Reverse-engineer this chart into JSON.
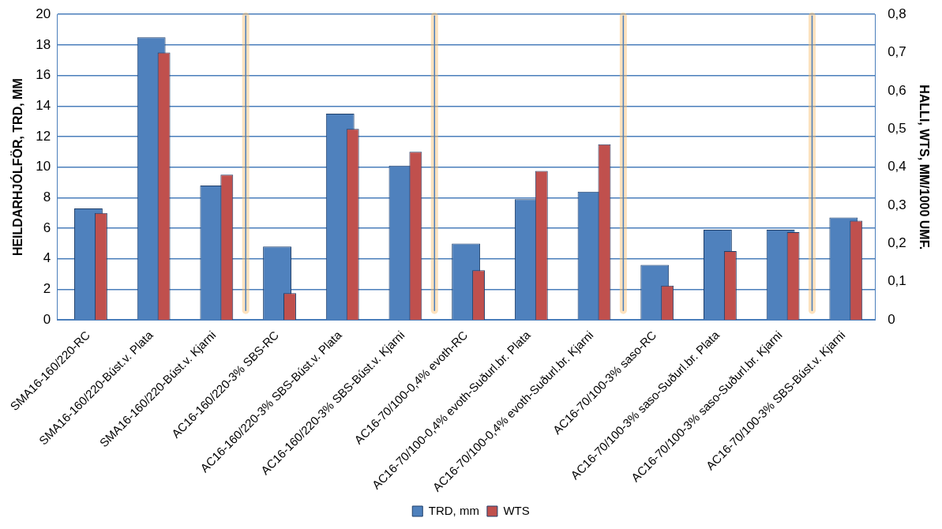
{
  "chart_data": {
    "type": "bar",
    "categories": [
      "SMA16-160/220-RC",
      "SMA16-160/220-Búst.v. Plata",
      "SMA16-160/220-Búst.v. Kjarni",
      "AC16-160/220-3% SBS-RC",
      "AC16-160/220-3% SBS-Búst.v. Plata",
      "AC16-160/220-3% SBS-Búst.v. Kjarni",
      "AC16-70/100-0,4% evoth-RC",
      "AC16-70/100-0,4% evoth-Suðurl.br. Plata",
      "AC16-70/100-0,4% evoth-Suðurl.br. Kjarni",
      "AC16-70/100-3% saso-RC",
      "AC16-70/100-3% saso-Suðurl.br. Plata",
      "AC16-70/100-3% saso-Suðurl.br. Kjarni",
      "AC16-70/100-3% SBS-Búst.v. Kjarni"
    ],
    "series": [
      {
        "name": "TRD, mm",
        "color": "#4f81bd",
        "values": [
          7.3,
          18.5,
          8.8,
          4.8,
          13.5,
          10.1,
          5.0,
          7.9,
          8.4,
          3.6,
          5.9,
          5.9,
          6.7
        ]
      },
      {
        "name": "WTS",
        "color": "#c0504d",
        "axis": "y2",
        "values": [
          0.28,
          0.7,
          0.38,
          0.07,
          0.5,
          0.44,
          0.13,
          0.39,
          0.46,
          0.09,
          0.18,
          0.23,
          0.26
        ]
      }
    ],
    "ylabel": "HEILDARHJÓLFÖR, TRD, MM",
    "y2label": "HALLI, WTS, MM/1000 UMF.",
    "ylim": [
      0,
      20
    ],
    "yticks": [
      0,
      2,
      4,
      6,
      8,
      10,
      12,
      14,
      16,
      18,
      20
    ],
    "y2lim": [
      0,
      0.8
    ],
    "y2ticks": [
      0,
      {
        "value": 0.1,
        "label": "0,1"
      },
      {
        "value": 0.2,
        "label": "0,2"
      },
      {
        "value": 0.3,
        "label": "0,3"
      },
      {
        "value": 0.4,
        "label": "0,4"
      },
      {
        "value": 0.5,
        "label": "0,5"
      },
      {
        "value": 0.6,
        "label": "0,6"
      },
      {
        "value": 0.7,
        "label": "0,7"
      },
      {
        "value": 0.8,
        "label": "0,8"
      }
    ],
    "grid": "y",
    "legend": "bottom"
  }
}
